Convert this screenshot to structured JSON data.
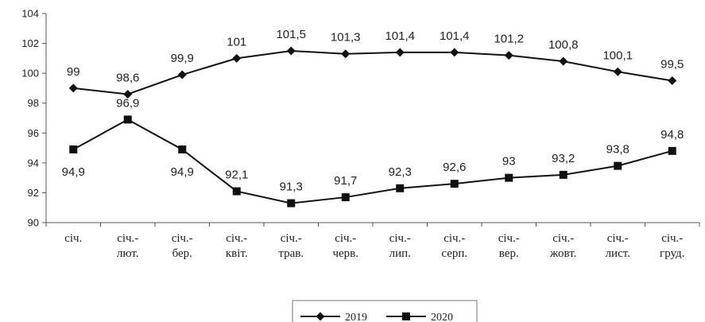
{
  "chart_data": {
    "type": "line",
    "categories": [
      [
        "січ."
      ],
      [
        "січ.-",
        "лют."
      ],
      [
        "січ.-",
        "бер."
      ],
      [
        "січ.-",
        "квіт."
      ],
      [
        "січ.-",
        "трав."
      ],
      [
        "січ.-",
        "черв."
      ],
      [
        "січ.-",
        "лип."
      ],
      [
        "січ.-",
        "серп."
      ],
      [
        "січ.-",
        "вер."
      ],
      [
        "січ.-",
        "жовт."
      ],
      [
        "січ.-",
        "лист."
      ],
      [
        "січ.-",
        "груд."
      ]
    ],
    "series": [
      {
        "name": "2019",
        "marker": "diamond",
        "values": [
          99,
          98.6,
          99.9,
          101,
          101.5,
          101.3,
          101.4,
          101.4,
          101.2,
          100.8,
          100.1,
          99.5
        ],
        "labels": [
          "99",
          "98,6",
          "99,9",
          "101",
          "101,5",
          "101,3",
          "101,4",
          "101,4",
          "101,2",
          "100,8",
          "100,1",
          "99,5"
        ]
      },
      {
        "name": "2020",
        "marker": "square",
        "values": [
          94.9,
          96.9,
          94.9,
          92.1,
          91.3,
          91.7,
          92.3,
          92.6,
          93,
          93.2,
          93.8,
          94.8
        ],
        "labels": [
          "94,9",
          "96,9",
          "94,9",
          "92,1",
          "91,3",
          "91,7",
          "92,3",
          "92,6",
          "93",
          "93,2",
          "93,8",
          "94,8"
        ]
      }
    ],
    "ylim": [
      90,
      104
    ],
    "yticks": [
      90,
      92,
      94,
      96,
      98,
      100,
      102,
      104
    ],
    "grid": false,
    "legend": "bottom-center",
    "title": "",
    "xlabel": "",
    "ylabel": "",
    "colors": {
      "line": "#111111",
      "axis": "#555555"
    }
  }
}
